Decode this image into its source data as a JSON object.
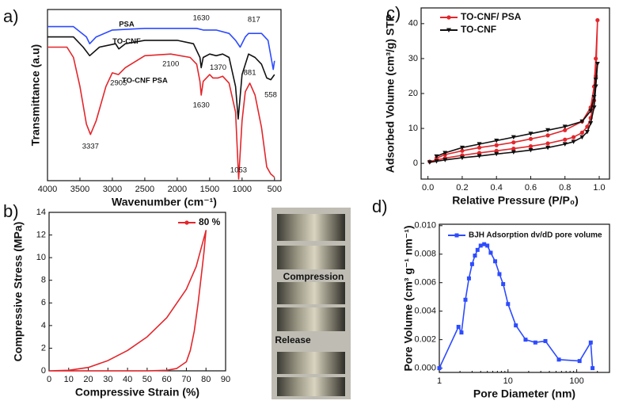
{
  "chart_data": [
    {
      "type": "line",
      "panel": "a)",
      "xlabel": "Wavenumber (cm⁻¹)",
      "ylabel": "Transmittance (a.u)",
      "xlim": [
        4000,
        400
      ],
      "ylim": [
        0,
        100
      ],
      "xticks": [
        4000,
        3500,
        3000,
        2500,
        2000,
        1500,
        1000,
        500
      ],
      "series": [
        {
          "name": "PSA",
          "color": "#2d4bff",
          "x": [
            4000,
            3600,
            3400,
            3350,
            3250,
            3000,
            2500,
            2000,
            1700,
            1600,
            1400,
            1200,
            1100,
            1030,
            950,
            900,
            817,
            700,
            600,
            520,
            500
          ],
          "values": [
            90,
            90,
            84,
            80,
            84,
            88,
            89,
            89,
            89,
            88,
            88,
            86,
            82,
            78,
            84,
            86,
            86,
            86,
            82,
            65,
            70
          ]
        },
        {
          "name": "TO-CNF",
          "color": "#111111",
          "x": [
            4000,
            3600,
            3450,
            3350,
            3200,
            2950,
            2900,
            2800,
            2500,
            2000,
            1750,
            1650,
            1630,
            1600,
            1500,
            1400,
            1300,
            1200,
            1100,
            1060,
            1000,
            900,
            800,
            700,
            620,
            558,
            500
          ],
          "values": [
            84,
            84,
            78,
            73,
            78,
            80,
            77,
            80,
            82,
            82,
            80,
            72,
            66,
            72,
            74,
            73,
            74,
            72,
            55,
            36,
            62,
            74,
            72,
            68,
            60,
            59,
            62
          ]
        },
        {
          "name": "TO-CNF PSA",
          "color": "#e3262b",
          "x": [
            4000,
            3700,
            3600,
            3500,
            3400,
            3337,
            3250,
            3100,
            3000,
            2905,
            2800,
            2500,
            2100,
            1800,
            1700,
            1650,
            1630,
            1600,
            1500,
            1450,
            1370,
            1300,
            1200,
            1100,
            1053,
            1000,
            950,
            881,
            800,
            700,
            620,
            560,
            500
          ],
          "values": [
            78,
            78,
            72,
            55,
            33,
            27,
            35,
            55,
            63,
            62,
            66,
            73,
            74,
            72,
            68,
            58,
            50,
            58,
            62,
            60,
            60,
            61,
            57,
            40,
            1,
            35,
            52,
            57,
            50,
            31,
            8,
            4,
            2
          ]
        }
      ],
      "annotations": [
        {
          "text": "1630",
          "x": 1630,
          "y": 95
        },
        {
          "text": "817",
          "x": 817,
          "y": 94
        },
        {
          "text": "2100",
          "x": 2100,
          "y": 68
        },
        {
          "text": "2905",
          "x": 2905,
          "y": 57
        },
        {
          "text": "3337",
          "x": 3337,
          "y": 20
        },
        {
          "text": "1630",
          "x": 1630,
          "y": 44
        },
        {
          "text": "1370",
          "x": 1370,
          "y": 66
        },
        {
          "text": "881",
          "x": 881,
          "y": 63
        },
        {
          "text": "558",
          "x": 558,
          "y": 50
        },
        {
          "text": "1053",
          "x": 1053,
          "y": 6
        }
      ]
    },
    {
      "type": "line",
      "panel": "b)",
      "xlabel": "Compressive Strain (%)",
      "ylabel": "Compressive Stress (MPa)",
      "xlim": [
        0,
        90
      ],
      "ylim": [
        0,
        14
      ],
      "xticks": [
        0,
        10,
        20,
        30,
        40,
        50,
        60,
        70,
        80,
        90
      ],
      "yticks": [
        0,
        2,
        4,
        6,
        8,
        10,
        12,
        14
      ],
      "series": [
        {
          "name": "80 %",
          "color": "#e3262b",
          "x": [
            0,
            10,
            20,
            30,
            40,
            50,
            60,
            70,
            75,
            80,
            79,
            78,
            76,
            74,
            72,
            70,
            65,
            60,
            50,
            30,
            0
          ],
          "values": [
            0,
            0.05,
            0.3,
            0.9,
            1.8,
            3.0,
            4.7,
            7.2,
            9.2,
            12.4,
            10.5,
            9,
            6,
            3.5,
            1.8,
            0.8,
            0.2,
            0.05,
            0,
            0,
            0
          ]
        }
      ]
    },
    {
      "type": "line",
      "panel": "c)",
      "xlabel": "Relative Pressure (P/P₀)",
      "ylabel": "Adsorbed Volume (cm³/g) STP",
      "xlim": [
        -0.04,
        1.06
      ],
      "ylim": [
        -4.5,
        44.5
      ],
      "xticks": [
        {
          "value": 0,
          "label": "0.0"
        },
        0.2,
        0.4,
        0.6,
        0.8,
        {
          "value": 1,
          "label": "1.0"
        }
      ],
      "yticks": [
        0,
        10,
        20,
        30,
        40
      ],
      "series": [
        {
          "name": "TO-CNF/ PSA",
          "color": "#e3262b",
          "marker": "circle",
          "x": [
            0.01,
            0.05,
            0.1,
            0.2,
            0.3,
            0.4,
            0.5,
            0.6,
            0.7,
            0.8,
            0.85,
            0.9,
            0.93,
            0.95,
            0.97,
            0.98,
            0.99,
            0.98,
            0.97,
            0.95,
            0.9,
            0.8,
            0.7,
            0.6,
            0.5,
            0.4,
            0.3,
            0.2,
            0.1,
            0.05
          ],
          "values": [
            0.5,
            1,
            1.5,
            2.3,
            3,
            3.6,
            4.2,
            4.9,
            5.7,
            6.8,
            7.5,
            8.8,
            10.5,
            13,
            18,
            25,
            41,
            30,
            22,
            16,
            12,
            9.5,
            8,
            7,
            6,
            5.2,
            4.5,
            3.6,
            2.5,
            1.5
          ]
        },
        {
          "name": "TO-CNF",
          "color": "#111111",
          "marker": "triangle",
          "x": [
            0.01,
            0.05,
            0.1,
            0.2,
            0.3,
            0.4,
            0.5,
            0.6,
            0.7,
            0.8,
            0.85,
            0.9,
            0.93,
            0.95,
            0.97,
            0.98,
            0.99,
            0.98,
            0.97,
            0.95,
            0.9,
            0.8,
            0.7,
            0.6,
            0.5,
            0.4,
            0.3,
            0.2,
            0.1,
            0.05
          ],
          "values": [
            0.3,
            0.6,
            1,
            1.6,
            2.1,
            2.7,
            3.2,
            3.8,
            4.5,
            5.5,
            6.2,
            7.5,
            9,
            11.5,
            16,
            22,
            28.5,
            24,
            19,
            15,
            12,
            10.5,
            9.5,
            8.5,
            7.5,
            6.5,
            5.5,
            4.5,
            3,
            2
          ]
        }
      ]
    },
    {
      "type": "line",
      "panel": "d)",
      "xlabel": "Pore Diameter (nm)",
      "ylabel": "Pore Volume (cm³ g⁻¹ nm⁻¹)",
      "xscale": "log",
      "xlim": [
        1,
        300
      ],
      "ylim": [
        -0.0003,
        0.0101
      ],
      "xticks": [
        1,
        10,
        100
      ],
      "yticks": [
        {
          "value": 0,
          "label": "0.000"
        },
        {
          "value": 0.002,
          "label": "0.002"
        },
        {
          "value": 0.004,
          "label": "0.004"
        },
        {
          "value": 0.006,
          "label": "0.006"
        },
        {
          "value": 0.008,
          "label": "0.008"
        },
        {
          "value": 0.01,
          "label": "0.010"
        }
      ],
      "series": [
        {
          "name": "BJH Adsorption dv/dD pore volume",
          "color": "#2d4bff",
          "marker": "square",
          "x": [
            1,
            1.9,
            2.1,
            2.4,
            2.7,
            3.0,
            3.3,
            3.6,
            4.0,
            4.5,
            5.0,
            5.6,
            6.5,
            7.5,
            8.5,
            10,
            13,
            18,
            25,
            35,
            55,
            110,
            160,
            170
          ],
          "values": [
            0,
            0.0029,
            0.0025,
            0.0048,
            0.0063,
            0.0073,
            0.0079,
            0.0083,
            0.0086,
            0.0087,
            0.0086,
            0.0081,
            0.0075,
            0.0066,
            0.0059,
            0.0045,
            0.003,
            0.002,
            0.0018,
            0.0019,
            0.0006,
            0.0005,
            0.0018,
            0
          ]
        }
      ]
    }
  ],
  "photo": {
    "labels": [
      "Compression",
      "Release"
    ]
  }
}
